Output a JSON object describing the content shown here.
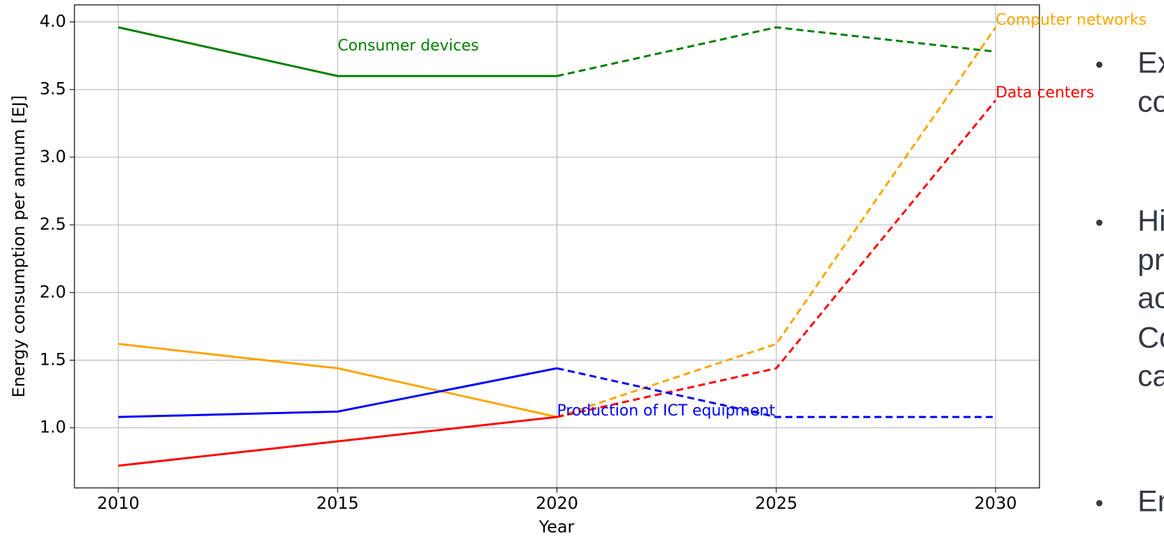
{
  "chart_data": {
    "type": "line",
    "ylabel": "Energy consumption per annum [EJ]",
    "xlabel": "Year",
    "x": [
      2010,
      2015,
      2020,
      2025,
      2030
    ],
    "dashed_from": 2020,
    "series": [
      {
        "name": "Consumer devices",
        "color": "#008000",
        "values": [
          3.96,
          3.6,
          3.6,
          3.96,
          3.78
        ]
      },
      {
        "name": "Computer networks",
        "color": "#ffa500",
        "values": [
          1.62,
          1.44,
          1.08,
          1.62,
          3.96
        ]
      },
      {
        "name": "Data centers",
        "color": "#ff0000",
        "values": [
          0.72,
          0.9,
          1.08,
          1.44,
          3.42
        ]
      },
      {
        "name": "Production of ICT equipment",
        "color": "#0000ff",
        "values": [
          1.08,
          1.12,
          1.44,
          1.08,
          1.08
        ]
      }
    ],
    "xlim": [
      2009,
      2031
    ],
    "ylim": [
      0.556,
      4.126
    ],
    "xticks": [
      2010,
      2015,
      2020,
      2025,
      2030
    ],
    "yticks": [
      {
        "value": 1,
        "label": "1.0"
      },
      {
        "value": 1.5,
        "label": "1.5"
      },
      {
        "value": 2,
        "label": "2.0"
      },
      {
        "value": 2.5,
        "label": "2.5"
      },
      {
        "value": 3,
        "label": "3.0"
      },
      {
        "value": 3.5,
        "label": "3.5"
      },
      {
        "value": 4,
        "label": "4.0"
      }
    ],
    "grid": true
  },
  "slide_text": {
    "bullets": [
      [
        "Ex",
        "co"
      ],
      [
        "Hi",
        "pr",
        "ac",
        "Co",
        "ca"
      ],
      [
        "En"
      ]
    ]
  }
}
